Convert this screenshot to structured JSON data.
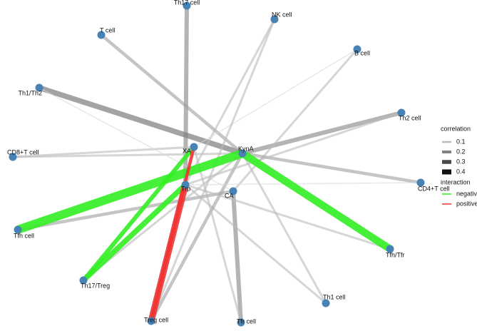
{
  "nodes": [
    {
      "label": "Th17 cell"
    },
    {
      "label": "NK cell"
    },
    {
      "label": "T cell"
    },
    {
      "label": "B cell"
    },
    {
      "label": "Th1/Th2"
    },
    {
      "label": "Th2 cell"
    },
    {
      "label": "CD8+T cell"
    },
    {
      "label": "XA"
    },
    {
      "label": "KynA"
    },
    {
      "label": "CD4+T cell"
    },
    {
      "label": "Trp"
    },
    {
      "label": "CA"
    },
    {
      "label": "Tfh cell"
    },
    {
      "label": "Tfh/Tfr"
    },
    {
      "label": "Th17/Treg"
    },
    {
      "label": "Th1 cell"
    },
    {
      "label": "Treg cell"
    },
    {
      "label": "Tfr cell"
    }
  ],
  "edges": [
    {
      "from": 8,
      "to": 4,
      "correlation": 0.25
    },
    {
      "from": 8,
      "to": 5,
      "correlation": 0.2
    },
    {
      "from": 0,
      "to": 10,
      "correlation": 0.2
    },
    {
      "from": 11,
      "to": 17,
      "correlation": 0.2
    },
    {
      "from": 2,
      "to": 8,
      "correlation": 0.15
    },
    {
      "from": 1,
      "to": 10,
      "correlation": 0.1
    },
    {
      "from": 3,
      "to": 11,
      "correlation": 0.1
    },
    {
      "from": 6,
      "to": 8,
      "correlation": 0.1
    },
    {
      "from": 6,
      "to": 7,
      "correlation": 0.1
    },
    {
      "from": 8,
      "to": 9,
      "correlation": 0.15
    },
    {
      "from": 12,
      "to": 11,
      "correlation": 0.15
    },
    {
      "from": 8,
      "to": 15,
      "correlation": 0.1
    },
    {
      "from": 10,
      "to": 15,
      "correlation": 0.1
    },
    {
      "from": 8,
      "to": 16,
      "correlation": 0.15
    },
    {
      "from": 7,
      "to": 17,
      "correlation": 0.1
    },
    {
      "from": 4,
      "to": 11,
      "correlation": 0.05
    },
    {
      "from": 14,
      "to": 8,
      "correlation": 0.1
    },
    {
      "from": 3,
      "to": 7,
      "correlation": 0.05
    },
    {
      "from": 13,
      "to": 10,
      "correlation": 0.1
    },
    {
      "from": 9,
      "to": 10,
      "correlation": 0.05
    },
    {
      "from": 5,
      "to": 10,
      "correlation": 0.1
    },
    {
      "from": 1,
      "to": 16,
      "correlation": 0.1
    },
    {
      "from": 8,
      "to": 12,
      "correlation": 0.4,
      "interaction": "negative"
    },
    {
      "from": 8,
      "to": 13,
      "correlation": 0.35,
      "interaction": "negative"
    },
    {
      "from": 7,
      "to": 14,
      "correlation": 0.2,
      "interaction": "negative"
    },
    {
      "from": 10,
      "to": 14,
      "correlation": 0.25,
      "interaction": "negative"
    },
    {
      "from": 10,
      "to": 16,
      "correlation": 0.3,
      "interaction": "positive"
    },
    {
      "from": 7,
      "to": 16,
      "correlation": 0.15,
      "interaction": "positive"
    }
  ],
  "legend": {
    "correlation": {
      "title": "correlation",
      "values": [
        0.1,
        0.2,
        0.3,
        0.4
      ]
    },
    "interaction": {
      "title": "interaction",
      "items": [
        {
          "label": "negative",
          "color": "#33ee22"
        },
        {
          "label": "positive",
          "color": "#ee3333"
        }
      ]
    }
  }
}
